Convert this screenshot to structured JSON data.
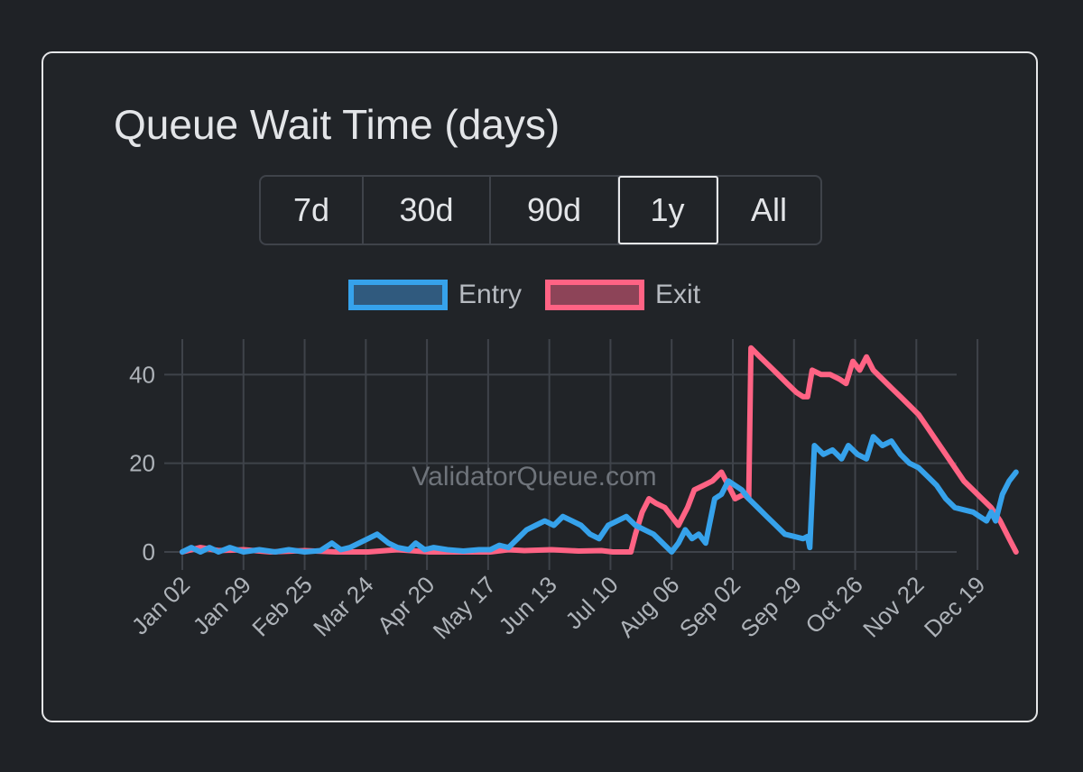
{
  "title": "Queue Wait Time (days)",
  "ranges": [
    {
      "label": "7d",
      "active": false
    },
    {
      "label": "30d",
      "active": false
    },
    {
      "label": "90d",
      "active": false
    },
    {
      "label": "1y",
      "active": true
    },
    {
      "label": "All",
      "active": false
    }
  ],
  "watermark": "ValidatorQueue.com",
  "colors": {
    "entry": "#36a2eb",
    "entry_fill": "#305a7e",
    "exit": "#ff6384",
    "exit_fill": "#8d4458",
    "grid": "#3f434a",
    "text": "#aeb3b9"
  },
  "chart_data": {
    "type": "line",
    "x_ticks": [
      "Jan 02",
      "Jan 29",
      "Feb 25",
      "Mar 24",
      "Apr 20",
      "May 17",
      "Jun 13",
      "Jul 10",
      "Aug 06",
      "Sep 02",
      "Sep 29",
      "Oct 26",
      "Nov 22",
      "Dec 19"
    ],
    "ylim": [
      0,
      48
    ],
    "y_ticks": [
      0,
      20,
      40
    ],
    "grid": true,
    "legend_position": "top",
    "series": [
      {
        "name": "Entry",
        "color": "#36a2eb",
        "points": [
          [
            "Jan 02",
            0
          ],
          [
            "Jan 06",
            1
          ],
          [
            "Jan 10",
            0
          ],
          [
            "Jan 14",
            1
          ],
          [
            "Jan 18",
            0
          ],
          [
            "Jan 23",
            1
          ],
          [
            "Jan 29",
            0
          ],
          [
            "Feb 05",
            0.5
          ],
          [
            "Feb 12",
            0
          ],
          [
            "Feb 18",
            0.5
          ],
          [
            "Feb 25",
            0
          ],
          [
            "Mar 03",
            0.3
          ],
          [
            "Mar 08",
            2
          ],
          [
            "Mar 12",
            0.5
          ],
          [
            "Mar 16",
            1
          ],
          [
            "Mar 20",
            2
          ],
          [
            "Mar 24",
            3
          ],
          [
            "Mar 28",
            4
          ],
          [
            "Apr 02",
            2
          ],
          [
            "Apr 06",
            1
          ],
          [
            "Apr 11",
            0.5
          ],
          [
            "Apr 14",
            2
          ],
          [
            "Apr 18",
            0.5
          ],
          [
            "Apr 22",
            1
          ],
          [
            "Apr 28",
            0.5
          ],
          [
            "May 05",
            0.2
          ],
          [
            "May 12",
            0.5
          ],
          [
            "May 17",
            0.5
          ],
          [
            "May 21",
            1.5
          ],
          [
            "May 25",
            1
          ],
          [
            "May 29",
            3
          ],
          [
            "Jun 02",
            5
          ],
          [
            "Jun 06",
            6
          ],
          [
            "Jun 10",
            7
          ],
          [
            "Jun 14",
            6
          ],
          [
            "Jun 18",
            8
          ],
          [
            "Jun 22",
            7
          ],
          [
            "Jun 26",
            6
          ],
          [
            "Jun 30",
            4
          ],
          [
            "Jul 04",
            3
          ],
          [
            "Jul 08",
            6
          ],
          [
            "Jul 12",
            7
          ],
          [
            "Jul 16",
            8
          ],
          [
            "Jul 20",
            6
          ],
          [
            "Jul 24",
            5
          ],
          [
            "Jul 28",
            4
          ],
          [
            "Aug 01",
            2
          ],
          [
            "Aug 05",
            0
          ],
          [
            "Aug 08",
            2
          ],
          [
            "Aug 11",
            5
          ],
          [
            "Aug 14",
            3
          ],
          [
            "Aug 17",
            4
          ],
          [
            "Aug 20",
            2
          ],
          [
            "Aug 24",
            12
          ],
          [
            "Aug 27",
            13
          ],
          [
            "Aug 30",
            16
          ],
          [
            "Sep 02",
            15
          ],
          [
            "Sep 05",
            14
          ],
          [
            "Sep 08",
            12
          ],
          [
            "Sep 12",
            10
          ],
          [
            "Sep 16",
            8
          ],
          [
            "Sep 20",
            6
          ],
          [
            "Sep 24",
            4
          ],
          [
            "Sep 28",
            3.5
          ],
          [
            "Oct 02",
            3
          ],
          [
            "Oct 04",
            3.5
          ],
          [
            "Oct 05",
            1
          ],
          [
            "Oct 07",
            24
          ],
          [
            "Oct 11",
            22
          ],
          [
            "Oct 15",
            23
          ],
          [
            "Oct 19",
            21
          ],
          [
            "Oct 22",
            24
          ],
          [
            "Oct 26",
            22
          ],
          [
            "Oct 30",
            21
          ],
          [
            "Nov 02",
            26
          ],
          [
            "Nov 06",
            24
          ],
          [
            "Nov 10",
            25
          ],
          [
            "Nov 14",
            22
          ],
          [
            "Nov 18",
            20
          ],
          [
            "Nov 22",
            19
          ],
          [
            "Nov 26",
            17
          ],
          [
            "Nov 30",
            15
          ],
          [
            "Dec 04",
            12
          ],
          [
            "Dec 08",
            10
          ],
          [
            "Dec 12",
            9.5
          ],
          [
            "Dec 16",
            9
          ],
          [
            "Dec 19",
            8
          ],
          [
            "Dec 22",
            7
          ],
          [
            "Dec 24",
            9
          ],
          [
            "Dec 26",
            7
          ],
          [
            "Dec 29",
            13
          ],
          [
            "Jan 01",
            16
          ],
          [
            "Jan 04",
            18
          ]
        ]
      },
      {
        "name": "Exit",
        "color": "#ff6384",
        "points": [
          [
            "Jan 02",
            0
          ],
          [
            "Jan 10",
            1
          ],
          [
            "Jan 18",
            0.3
          ],
          [
            "Jan 29",
            0.5
          ],
          [
            "Feb 10",
            0
          ],
          [
            "Feb 25",
            0.3
          ],
          [
            "Mar 10",
            0
          ],
          [
            "Mar 24",
            0
          ],
          [
            "Apr 06",
            0.5
          ],
          [
            "Apr 20",
            0
          ],
          [
            "May 05",
            0
          ],
          [
            "May 17",
            0
          ],
          [
            "May 25",
            0.5
          ],
          [
            "Jun 01",
            0.3
          ],
          [
            "Jun 13",
            0.5
          ],
          [
            "Jun 25",
            0.2
          ],
          [
            "Jul 05",
            0.3
          ],
          [
            "Jul 10",
            0
          ],
          [
            "Jul 18",
            0
          ],
          [
            "Jul 20",
            4
          ],
          [
            "Jul 23",
            9
          ],
          [
            "Jul 26",
            12
          ],
          [
            "Jul 29",
            11
          ],
          [
            "Aug 02",
            10
          ],
          [
            "Aug 05",
            8
          ],
          [
            "Aug 08",
            6
          ],
          [
            "Aug 12",
            10
          ],
          [
            "Aug 15",
            14
          ],
          [
            "Aug 19",
            15
          ],
          [
            "Aug 23",
            16
          ],
          [
            "Aug 27",
            18
          ],
          [
            "Aug 30",
            15
          ],
          [
            "Sep 02",
            12
          ],
          [
            "Sep 06",
            13
          ],
          [
            "Sep 08",
            12
          ],
          [
            "Sep 09",
            46
          ],
          [
            "Sep 13",
            44
          ],
          [
            "Sep 17",
            42
          ],
          [
            "Sep 21",
            40
          ],
          [
            "Sep 25",
            38
          ],
          [
            "Sep 29",
            36
          ],
          [
            "Oct 02",
            35
          ],
          [
            "Oct 04",
            35
          ],
          [
            "Oct 06",
            41
          ],
          [
            "Oct 10",
            40
          ],
          [
            "Oct 14",
            40
          ],
          [
            "Oct 18",
            39
          ],
          [
            "Oct 21",
            38
          ],
          [
            "Oct 24",
            43
          ],
          [
            "Oct 27",
            41
          ],
          [
            "Oct 30",
            44
          ],
          [
            "Nov 02",
            41
          ],
          [
            "Nov 06",
            39
          ],
          [
            "Nov 10",
            37
          ],
          [
            "Nov 14",
            35
          ],
          [
            "Nov 18",
            33
          ],
          [
            "Nov 22",
            31
          ],
          [
            "Nov 26",
            28
          ],
          [
            "Nov 30",
            25
          ],
          [
            "Dec 04",
            22
          ],
          [
            "Dec 08",
            19
          ],
          [
            "Dec 12",
            16
          ],
          [
            "Dec 16",
            14
          ],
          [
            "Dec 20",
            12
          ],
          [
            "Dec 24",
            10
          ],
          [
            "Dec 28",
            7
          ],
          [
            "Jan 01",
            3
          ],
          [
            "Jan 04",
            0
          ]
        ]
      }
    ]
  }
}
